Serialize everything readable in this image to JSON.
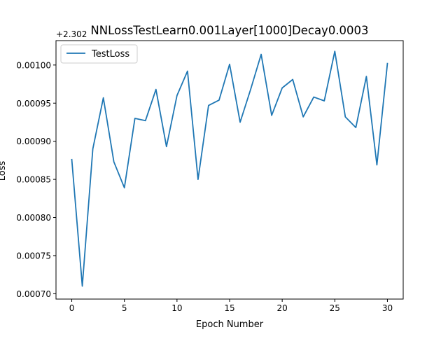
{
  "colors": {
    "series": "#1f77b4",
    "axes": "#000000",
    "background": "#ffffff"
  },
  "chart_data": {
    "type": "line",
    "title": "NNLossTestLearn0.001Layer[1000]Decay0.0003",
    "xlabel": "Epoch Number",
    "ylabel": "Loss",
    "offset_label": "+2.302",
    "xlim": [
      -1.5,
      31.5
    ],
    "ylim": [
      0.000693,
      0.001032
    ],
    "xticks": [
      0,
      5,
      10,
      15,
      20,
      25,
      30
    ],
    "xtick_labels": [
      "0",
      "5",
      "10",
      "15",
      "20",
      "25",
      "30"
    ],
    "yticks": [
      0.0007,
      0.00075,
      0.0008,
      0.00085,
      0.0009,
      0.00095,
      0.001
    ],
    "ytick_labels": [
      "0.00070",
      "0.00075",
      "0.00080",
      "0.00085",
      "0.00090",
      "0.00095",
      "0.00100"
    ],
    "grid": false,
    "legend_position": "upper-left",
    "series": [
      {
        "name": "TestLoss",
        "x": [
          0,
          1,
          2,
          3,
          4,
          5,
          6,
          7,
          8,
          9,
          10,
          11,
          12,
          13,
          14,
          15,
          16,
          17,
          18,
          19,
          20,
          21,
          22,
          23,
          24,
          25,
          26,
          27,
          28,
          29,
          30
        ],
        "values": [
          0.000876,
          0.00071,
          0.00089,
          0.000957,
          0.000873,
          0.000839,
          0.00093,
          0.000927,
          0.000968,
          0.000893,
          0.00096,
          0.000992,
          0.00085,
          0.000947,
          0.000954,
          0.001001,
          0.000925,
          0.000968,
          0.001014,
          0.000934,
          0.00097,
          0.000981,
          0.000932,
          0.000958,
          0.000953,
          0.001018,
          0.000932,
          0.000918,
          0.000985,
          0.000869,
          0.001002
        ]
      }
    ]
  }
}
